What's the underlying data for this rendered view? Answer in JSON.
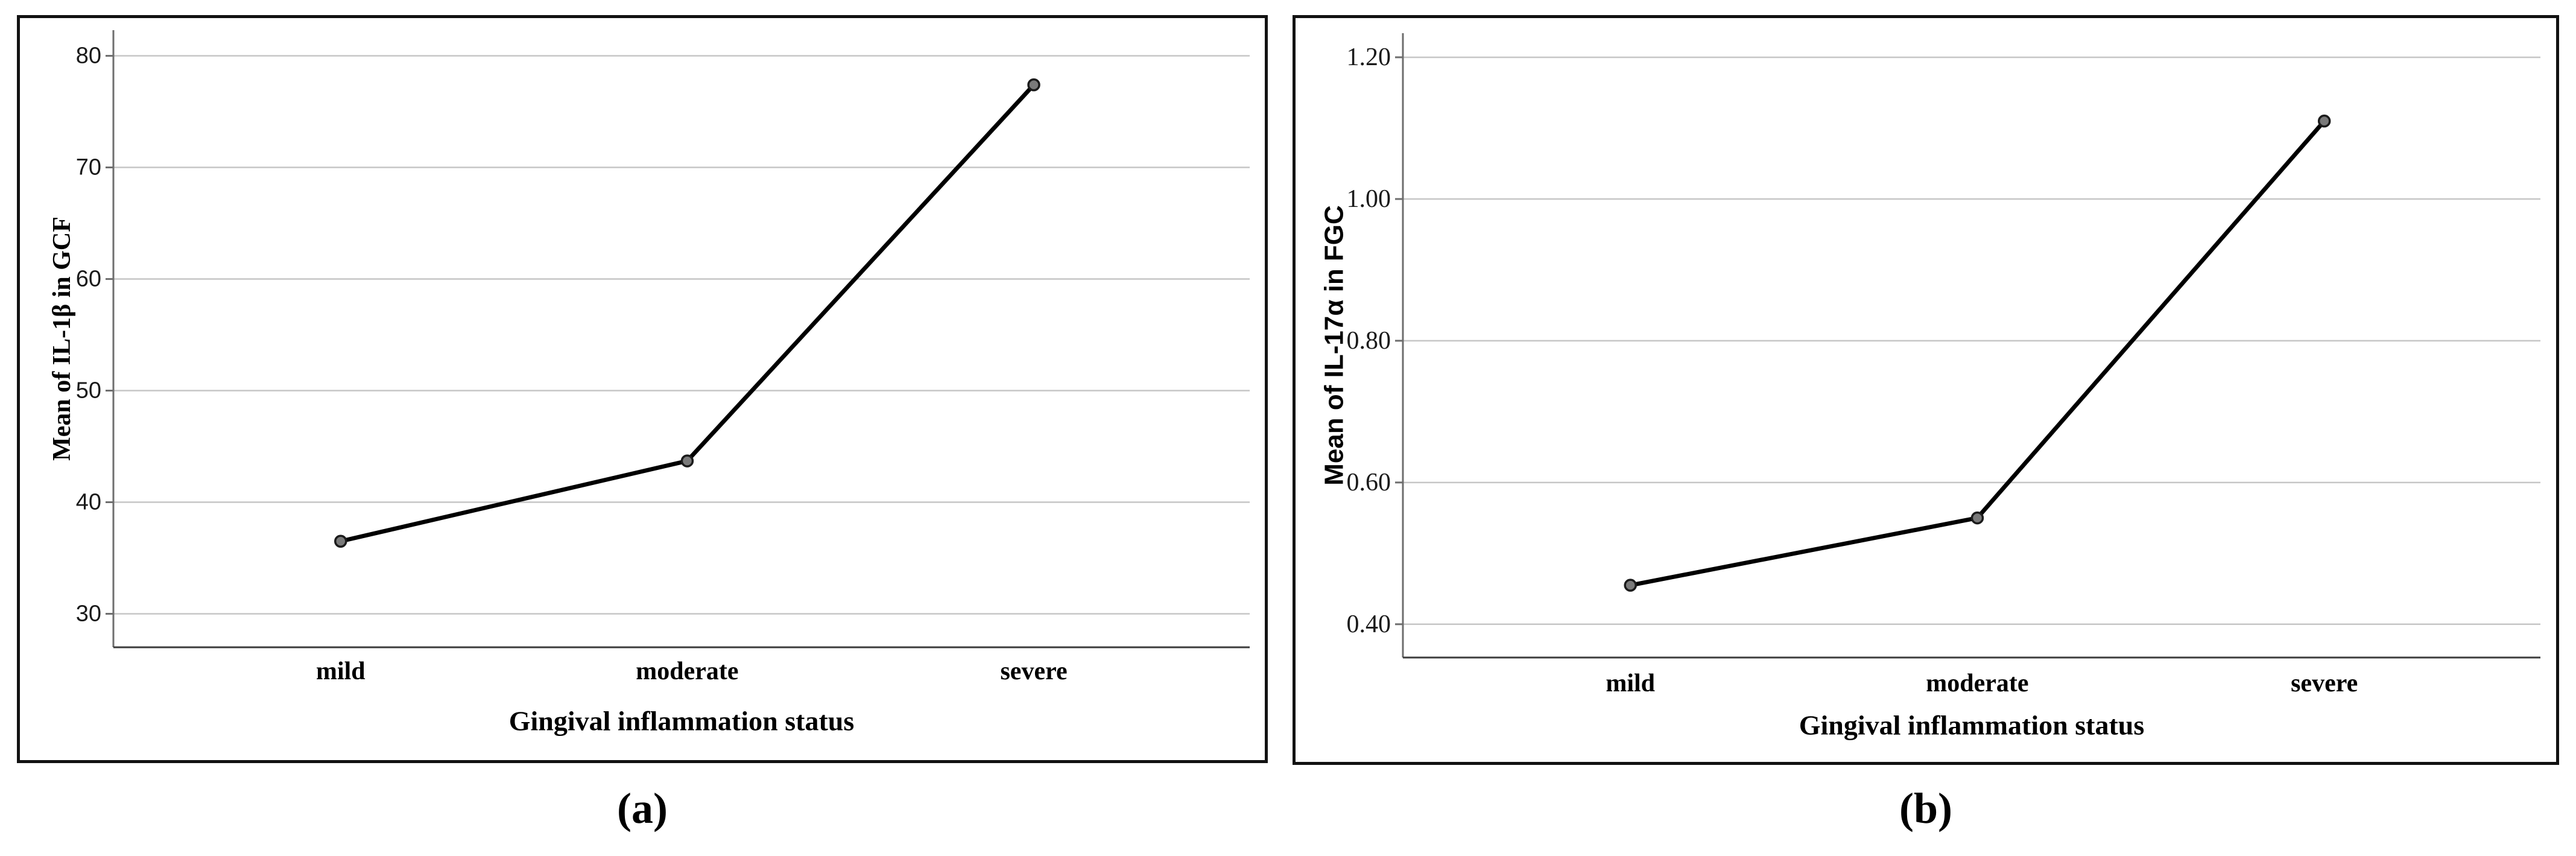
{
  "figure": {
    "caption_a": "(a)",
    "caption_b": "(b)",
    "background": "#ffffff",
    "panel_border_color": "#121212"
  },
  "chart_data": [
    {
      "id": "a",
      "type": "line",
      "title": "",
      "xlabel": "Gingival inflammation status",
      "ylabel": "Mean of IL-1β in GCF",
      "categories": [
        "mild",
        "moderate",
        "severe"
      ],
      "values": [
        36.5,
        43.7,
        77.4
      ],
      "yticks": [
        80,
        70,
        60,
        50,
        40,
        30
      ],
      "ytick_labels": [
        "80",
        "70",
        "60",
        "50",
        "40",
        "30"
      ],
      "ylim": [
        27.0,
        82.3
      ],
      "grid": true,
      "legend": "none",
      "line_color": "#000000",
      "marker_fill": "#7a7a7a",
      "marker_edge": "#1b1b1b",
      "gridline_color": "#c6c6c6",
      "axis_color": "#6e6e6e",
      "baseline_color": "#3c3c3c",
      "tick_label_font": "sans",
      "ylabel_font": "serif-bold",
      "xlabel_font": "serif-bold"
    },
    {
      "id": "b",
      "type": "line",
      "title": "",
      "xlabel": "Gingival inflammation status",
      "ylabel": "Mean of IL-17α in FGC",
      "categories": [
        "mild",
        "moderate",
        "severe"
      ],
      "values": [
        0.455,
        0.55,
        1.11
      ],
      "yticks": [
        1.2,
        1.0,
        0.8,
        0.6,
        0.4
      ],
      "ytick_labels": [
        "1.20",
        "1.00",
        "0.80",
        "0.60",
        "0.40"
      ],
      "ylim": [
        0.353,
        1.234
      ],
      "grid": true,
      "legend": "none",
      "line_color": "#000000",
      "marker_fill": "#7a7a7a",
      "marker_edge": "#1b1b1b",
      "gridline_color": "#c6c6c6",
      "axis_color": "#6e6e6e",
      "baseline_color": "#3c3c3c",
      "tick_label_font": "serif",
      "ylabel_font": "sans-bold",
      "xlabel_font": "serif-bold"
    }
  ]
}
